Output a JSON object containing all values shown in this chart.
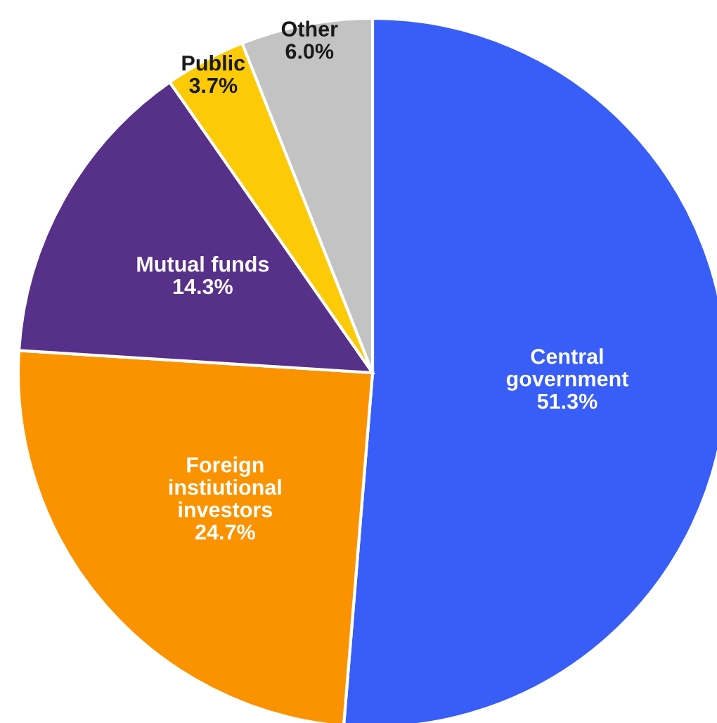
{
  "chart_data": {
    "type": "pie",
    "categories": [
      "Central\ngovernment",
      "Foreign\ninstiutional\ninvestors",
      "Mutual funds",
      "Public",
      "Other"
    ],
    "values": [
      51.3,
      24.7,
      14.3,
      3.7,
      6.0
    ],
    "value_labels": [
      "51.3%",
      "24.7%",
      "14.3%",
      "3.7%",
      "6.0%"
    ],
    "colors": [
      "#385ef7",
      "#fb9300",
      "#57308a",
      "#fcca06",
      "#c3c3c3"
    ]
  }
}
